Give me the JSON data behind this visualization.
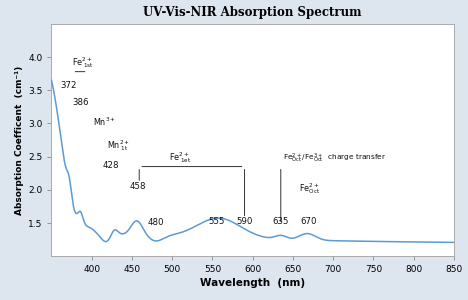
{
  "title": "UV-Vis-NIR Absorption Spectrum",
  "xlim": [
    350,
    850
  ],
  "ylim": [
    1.0,
    4.5
  ],
  "yticks": [
    1.5,
    2.0,
    2.5,
    3.0,
    3.5,
    4.0
  ],
  "xticks": [
    400,
    450,
    500,
    550,
    600,
    650,
    700,
    750,
    800,
    850
  ],
  "line_color": "#5b9bd5",
  "bg_color": "#dde5ee",
  "plot_bg": "#ffffff",
  "spine_color": "#aaaaaa",
  "text_color": "#111111"
}
